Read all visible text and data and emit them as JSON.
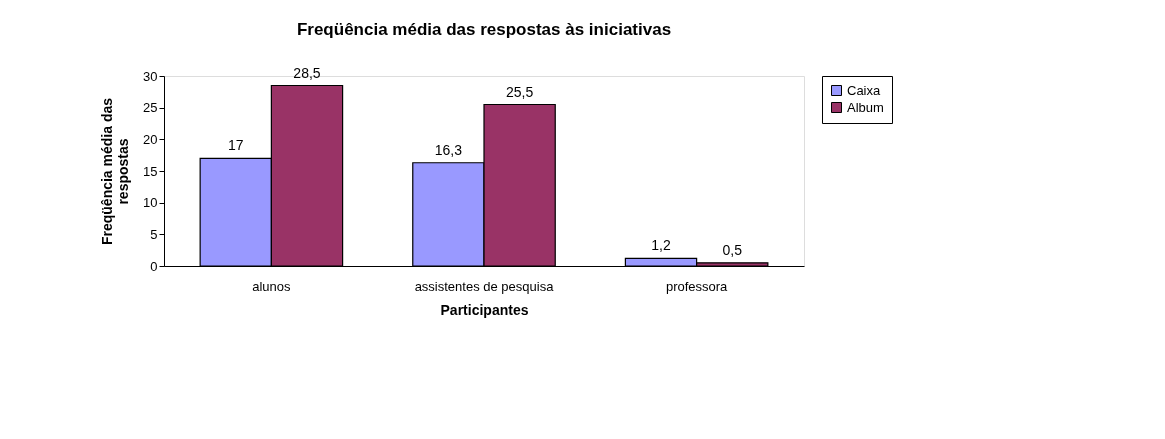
{
  "chart_data": {
    "type": "bar",
    "title": "Freqüência média das respostas às iniciativas",
    "xlabel": "Participantes",
    "ylabel": "Freqüência média das respostas",
    "categories": [
      "alunos",
      "assistentes de pesquisa",
      "professora"
    ],
    "series": [
      {
        "name": "Caixa",
        "color": "#9999ff",
        "values": [
          17,
          16.3,
          1.2
        ],
        "value_labels": [
          "17",
          "16,3",
          "1,2"
        ]
      },
      {
        "name": "Album",
        "color": "#993366",
        "values": [
          28.5,
          25.5,
          0.5
        ],
        "value_labels": [
          "28,5",
          "25,5",
          "0,5"
        ]
      }
    ],
    "ylim": [
      0,
      30
    ],
    "yticks": [
      0,
      5,
      10,
      15,
      20,
      25,
      30
    ],
    "grid": false,
    "legend": "right"
  }
}
